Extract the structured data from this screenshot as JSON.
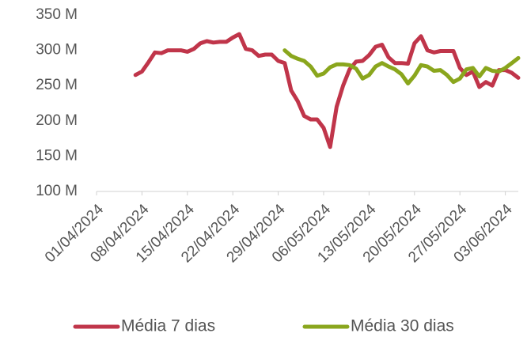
{
  "chart_data": {
    "type": "line",
    "x": [
      "01/04/2024",
      "02/04/2024",
      "03/04/2024",
      "04/04/2024",
      "05/04/2024",
      "06/04/2024",
      "07/04/2024",
      "08/04/2024",
      "09/04/2024",
      "10/04/2024",
      "11/04/2024",
      "12/04/2024",
      "13/04/2024",
      "14/04/2024",
      "15/04/2024",
      "16/04/2024",
      "17/04/2024",
      "18/04/2024",
      "19/04/2024",
      "20/04/2024",
      "21/04/2024",
      "22/04/2024",
      "23/04/2024",
      "24/04/2024",
      "25/04/2024",
      "26/04/2024",
      "27/04/2024",
      "28/04/2024",
      "29/04/2024",
      "30/04/2024",
      "01/05/2024",
      "02/05/2024",
      "03/05/2024",
      "04/05/2024",
      "05/05/2024",
      "06/05/2024",
      "07/05/2024",
      "08/05/2024",
      "09/05/2024",
      "10/05/2024",
      "11/05/2024",
      "12/05/2024",
      "13/05/2024",
      "14/05/2024",
      "15/05/2024",
      "16/05/2024",
      "17/05/2024",
      "18/05/2024",
      "19/05/2024",
      "20/05/2024",
      "21/05/2024",
      "22/05/2024",
      "23/05/2024",
      "24/05/2024",
      "25/05/2024",
      "26/05/2024",
      "27/05/2024",
      "28/05/2024",
      "29/05/2024",
      "30/05/2024",
      "31/05/2024",
      "01/06/2024",
      "02/06/2024",
      "03/06/2024",
      "04/06/2024",
      "05/06/2024"
    ],
    "series": [
      {
        "name": "Média 7 dias",
        "color": "#c0354a",
        "values": [
          null,
          null,
          null,
          null,
          null,
          null,
          265,
          270,
          283,
          297,
          296,
          300,
          300,
          300,
          298,
          302,
          310,
          313,
          311,
          312,
          312,
          318,
          323,
          302,
          300,
          292,
          294,
          294,
          285,
          282,
          243,
          228,
          207,
          202,
          202,
          190,
          163,
          220,
          250,
          273,
          284,
          285,
          293,
          305,
          308,
          290,
          282,
          282,
          281,
          310,
          320,
          300,
          297,
          299,
          299,
          299,
          275,
          265,
          270,
          248,
          255,
          250,
          272,
          272,
          268,
          261
        ]
      },
      {
        "name": "Média 30 dias",
        "color": "#8aa61d",
        "values": [
          null,
          null,
          null,
          null,
          null,
          null,
          null,
          null,
          null,
          null,
          null,
          null,
          null,
          null,
          null,
          null,
          null,
          null,
          null,
          null,
          null,
          null,
          null,
          null,
          null,
          null,
          null,
          null,
          null,
          300,
          292,
          288,
          285,
          277,
          264,
          267,
          276,
          280,
          280,
          279,
          274,
          260,
          265,
          277,
          282,
          277,
          273,
          266,
          253,
          264,
          279,
          277,
          271,
          272,
          265,
          255,
          260,
          273,
          275,
          263,
          275,
          271,
          270,
          275,
          282,
          289
        ]
      }
    ],
    "ylim": [
      100,
      350
    ],
    "yticks": [
      {
        "value": 100,
        "label": "100 M"
      },
      {
        "value": 150,
        "label": "150 M"
      },
      {
        "value": 200,
        "label": "200 M"
      },
      {
        "value": 250,
        "label": "250 M"
      },
      {
        "value": 300,
        "label": "300 M"
      },
      {
        "value": 350,
        "label": "350 M"
      }
    ],
    "xticks": [
      "01/04/2024",
      "08/04/2024",
      "15/04/2024",
      "22/04/2024",
      "29/04/2024",
      "06/05/2024",
      "13/05/2024",
      "20/05/2024",
      "27/05/2024",
      "03/06/2024"
    ],
    "grid": false
  }
}
